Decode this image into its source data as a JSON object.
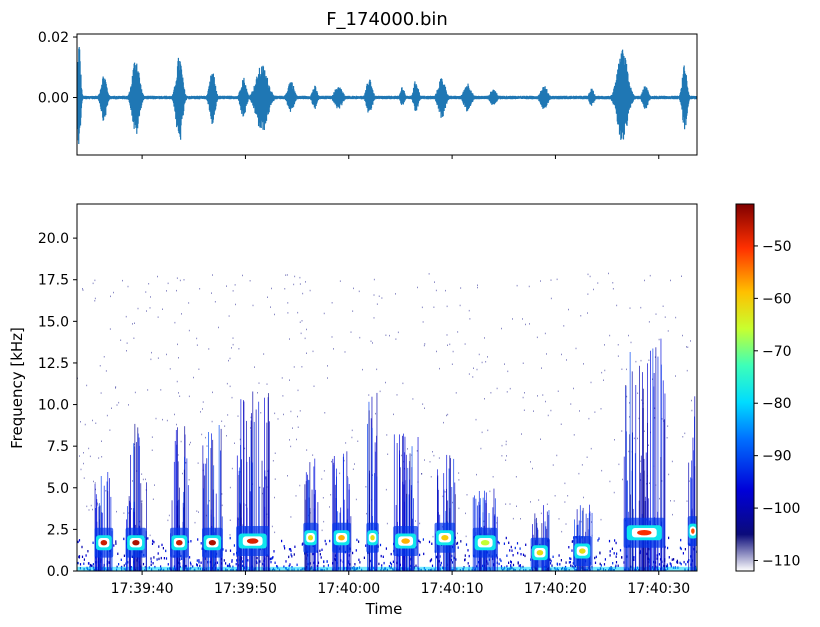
{
  "chart_data": [
    {
      "type": "line",
      "title": "F_174000.bin",
      "xlabel": "",
      "ylabel": "",
      "xlim_seconds": [
        0,
        60
      ],
      "ylim": [
        -0.019,
        0.021
      ],
      "yticks": [
        {
          "value": 0.02,
          "label": "0.02"
        },
        {
          "value": 0.0,
          "label": "0.00"
        }
      ],
      "x_tick_labels_shown": false,
      "grid": false,
      "waveform_bursts": [
        {
          "t": 0.2,
          "amp_pos": 0.019,
          "amp_neg": 0.017,
          "width": 0.4
        },
        {
          "t": 2.6,
          "amp_pos": 0.008,
          "amp_neg": 0.008,
          "width": 0.7
        },
        {
          "t": 5.7,
          "amp_pos": 0.014,
          "amp_neg": 0.013,
          "width": 0.9
        },
        {
          "t": 9.9,
          "amp_pos": 0.014,
          "amp_neg": 0.016,
          "width": 0.8
        },
        {
          "t": 13.1,
          "amp_pos": 0.009,
          "amp_neg": 0.009,
          "width": 0.7
        },
        {
          "t": 16.1,
          "amp_pos": 0.007,
          "amp_neg": 0.007,
          "width": 0.7
        },
        {
          "t": 17.9,
          "amp_pos": 0.011,
          "amp_neg": 0.012,
          "width": 1.5
        },
        {
          "t": 20.7,
          "amp_pos": 0.006,
          "amp_neg": 0.005,
          "width": 0.8
        },
        {
          "t": 23.0,
          "amp_pos": 0.004,
          "amp_neg": 0.004,
          "width": 0.6
        },
        {
          "t": 25.3,
          "amp_pos": 0.004,
          "amp_neg": 0.004,
          "width": 1.0
        },
        {
          "t": 28.3,
          "amp_pos": 0.007,
          "amp_neg": 0.006,
          "width": 0.7
        },
        {
          "t": 31.5,
          "amp_pos": 0.004,
          "amp_neg": 0.003,
          "width": 0.5
        },
        {
          "t": 32.8,
          "amp_pos": 0.006,
          "amp_neg": 0.005,
          "width": 0.6
        },
        {
          "t": 35.3,
          "amp_pos": 0.007,
          "amp_neg": 0.007,
          "width": 0.9
        },
        {
          "t": 37.8,
          "amp_pos": 0.005,
          "amp_neg": 0.005,
          "width": 0.9
        },
        {
          "t": 40.3,
          "amp_pos": 0.003,
          "amp_neg": 0.003,
          "width": 0.8
        },
        {
          "t": 45.2,
          "amp_pos": 0.004,
          "amp_neg": 0.004,
          "width": 0.9
        },
        {
          "t": 49.8,
          "amp_pos": 0.003,
          "amp_neg": 0.003,
          "width": 0.6
        },
        {
          "t": 52.8,
          "amp_pos": 0.016,
          "amp_neg": 0.016,
          "width": 1.3
        },
        {
          "t": 55.0,
          "amp_pos": 0.004,
          "amp_neg": 0.004,
          "width": 0.7
        },
        {
          "t": 58.8,
          "amp_pos": 0.011,
          "amp_neg": 0.011,
          "width": 0.6
        }
      ],
      "line_color": "#1f77b4"
    },
    {
      "type": "heatmap",
      "title": "",
      "xlabel": "Time",
      "ylabel": "Frequency [kHz]",
      "ylim": [
        0,
        22.05
      ],
      "yticks": [
        0.0,
        2.5,
        5.0,
        7.5,
        10.0,
        12.5,
        15.0,
        17.5,
        20.0
      ],
      "ytick_labels": [
        "0.0",
        "2.5",
        "5.0",
        "7.5",
        "10.0",
        "12.5",
        "15.0",
        "17.5",
        "20.0"
      ],
      "xlim_seconds": [
        0,
        60
      ],
      "xticks": [
        {
          "t": 6.3,
          "label": "17:39:40"
        },
        {
          "t": 16.3,
          "label": "17:39:50"
        },
        {
          "t": 26.3,
          "label": "17:40:00"
        },
        {
          "t": 36.3,
          "label": "17:40:10"
        },
        {
          "t": 46.3,
          "label": "17:40:20"
        },
        {
          "t": 56.3,
          "label": "17:40:30"
        }
      ],
      "colormap": "jet",
      "colorbar": {
        "range": [
          -112,
          -42
        ],
        "ticks": [
          -110,
          -100,
          -90,
          -80,
          -70,
          -60,
          -50
        ],
        "tick_labels": [
          "−110",
          "−100",
          "−90",
          "−80",
          "−70",
          "−60",
          "−50"
        ]
      },
      "calls": [
        {
          "t": 2.6,
          "f_khz": 1.7,
          "width_s": 1.8,
          "top_khz": 6.0,
          "peak_db": -47
        },
        {
          "t": 5.7,
          "f_khz": 1.7,
          "width_s": 2.0,
          "top_khz": 9.0,
          "peak_db": -45
        },
        {
          "t": 9.9,
          "f_khz": 1.7,
          "width_s": 1.8,
          "top_khz": 10.0,
          "peak_db": -47
        },
        {
          "t": 13.1,
          "f_khz": 1.7,
          "width_s": 2.0,
          "top_khz": 9.0,
          "peak_db": -45
        },
        {
          "t": 17.0,
          "f_khz": 1.8,
          "width_s": 3.2,
          "top_khz": 11.0,
          "peak_db": -48
        },
        {
          "t": 22.6,
          "f_khz": 2.0,
          "width_s": 1.4,
          "top_khz": 7.0,
          "peak_db": -62
        },
        {
          "t": 25.6,
          "f_khz": 2.0,
          "width_s": 1.8,
          "top_khz": 7.5,
          "peak_db": -58
        },
        {
          "t": 28.6,
          "f_khz": 2.0,
          "width_s": 1.2,
          "top_khz": 11.0,
          "peak_db": -62
        },
        {
          "t": 31.8,
          "f_khz": 1.8,
          "width_s": 2.4,
          "top_khz": 8.5,
          "peak_db": -58
        },
        {
          "t": 35.6,
          "f_khz": 2.0,
          "width_s": 2.0,
          "top_khz": 7.0,
          "peak_db": -60
        },
        {
          "t": 39.5,
          "f_khz": 1.7,
          "width_s": 2.4,
          "top_khz": 5.0,
          "peak_db": -66
        },
        {
          "t": 44.8,
          "f_khz": 1.1,
          "width_s": 1.8,
          "top_khz": 4.0,
          "peak_db": -62
        },
        {
          "t": 48.9,
          "f_khz": 1.2,
          "width_s": 1.8,
          "top_khz": 4.0,
          "peak_db": -62
        },
        {
          "t": 54.9,
          "f_khz": 2.3,
          "width_s": 4.0,
          "top_khz": 14.0,
          "peak_db": -50
        },
        {
          "t": 59.6,
          "f_khz": 2.4,
          "width_s": 1.0,
          "top_khz": 11.0,
          "peak_db": -52
        }
      ]
    }
  ]
}
